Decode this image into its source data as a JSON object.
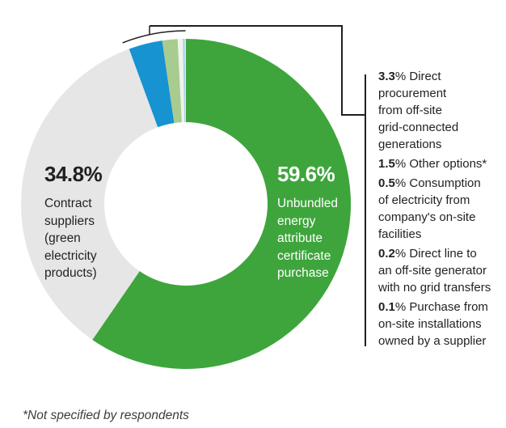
{
  "chart_data": {
    "type": "pie",
    "subtype": "donut",
    "title": "",
    "start_angle_deg": 0,
    "direction": "clockwise",
    "inner_radius_ratio": 0.495,
    "line_color": "#231f20",
    "segments": [
      {
        "label": "Unbundled energy attribute certificate purchase",
        "value": 59.6,
        "color": "#3ea53c"
      },
      {
        "label": "Contract suppliers (green electricity products)",
        "value": 34.8,
        "color": "#e6e6e6"
      },
      {
        "label": "Direct procurement from off-site grid-connected generations",
        "value": 3.3,
        "color": "#1793d2"
      },
      {
        "label": "Other options*",
        "value": 1.5,
        "color": "#a8cb8f"
      },
      {
        "label": "Consumption of electricity from company's on-site facilities",
        "value": 0.5,
        "color": "#eef3ec"
      },
      {
        "label": "Direct line to an off-site generator with no grid transfers",
        "value": 0.2,
        "color": "#aecfed"
      },
      {
        "label": "Purchase from on-site installations owned by a supplier",
        "value": 0.1,
        "color": "#dde9f6"
      }
    ]
  },
  "donut_labels": {
    "contract": {
      "pct": "34.8%",
      "text": "Contract\nsuppliers\n(green\nelectricity\nproducts)",
      "text_color": "#231f20"
    },
    "unbundled": {
      "pct": "59.6%",
      "text": "Unbundled\nenergy\nattribute\ncertificate\npurchase",
      "text_color": "#ffffff"
    }
  },
  "legend": {
    "entries": [
      {
        "pct": "3.3",
        "text": "% Direct\nprocurement\nfrom off-site\ngrid-connected\ngenerations"
      },
      {
        "pct": "1.5",
        "text": "% Other options*"
      },
      {
        "pct": "0.5",
        "text": "% Consumption\nof electricity from\ncompany's on-site\nfacilities"
      },
      {
        "pct": "0.2",
        "text": "% Direct line to\nan off-site generator\nwith no grid transfers"
      },
      {
        "pct": "0.1",
        "text": "% Purchase from\non-site installations\nowned by a supplier"
      }
    ]
  },
  "footnote": "*Not specified by respondents"
}
